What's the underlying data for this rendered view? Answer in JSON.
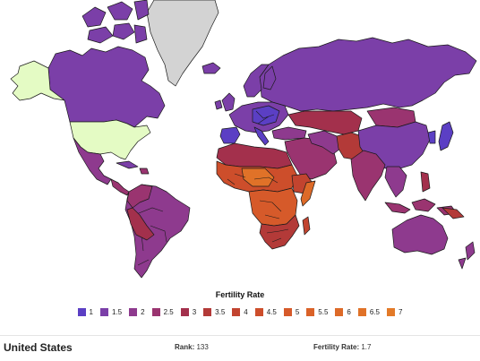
{
  "colors": {
    "c1": "#5b3fc4",
    "c15": "#7b3fa8",
    "c2": "#8e3a8e",
    "c25": "#9a3470",
    "c3": "#a3304c",
    "c35": "#b33a38",
    "c4": "#c2442f",
    "c45": "#cd4e2b",
    "c5": "#d65a2a",
    "c55": "#da6228",
    "c6": "#dd6a28",
    "c65": "#e07228",
    "c7": "#e37a28",
    "selected": "#e4fbc4",
    "no_data": "#d3d3d3"
  },
  "legend": {
    "title": "Fertility Rate",
    "items": [
      {
        "label": "1",
        "color": "#5b3fc4"
      },
      {
        "label": "1.5",
        "color": "#7b3fa8"
      },
      {
        "label": "2",
        "color": "#8e3a8e"
      },
      {
        "label": "2.5",
        "color": "#9a3470"
      },
      {
        "label": "3",
        "color": "#a3304c"
      },
      {
        "label": "3.5",
        "color": "#b33a38"
      },
      {
        "label": "4",
        "color": "#c2442f"
      },
      {
        "label": "4.5",
        "color": "#cd4e2b"
      },
      {
        "label": "5",
        "color": "#d65a2a"
      },
      {
        "label": "5.5",
        "color": "#da6228"
      },
      {
        "label": "6",
        "color": "#dd6a28"
      },
      {
        "label": "6.5",
        "color": "#e07228"
      },
      {
        "label": "7",
        "color": "#e37a28"
      }
    ]
  },
  "selected_country": {
    "name": "United States",
    "rank_label": "Rank:",
    "rank": "133",
    "rate_label": "Fertility Rate:",
    "rate": "1.7"
  }
}
